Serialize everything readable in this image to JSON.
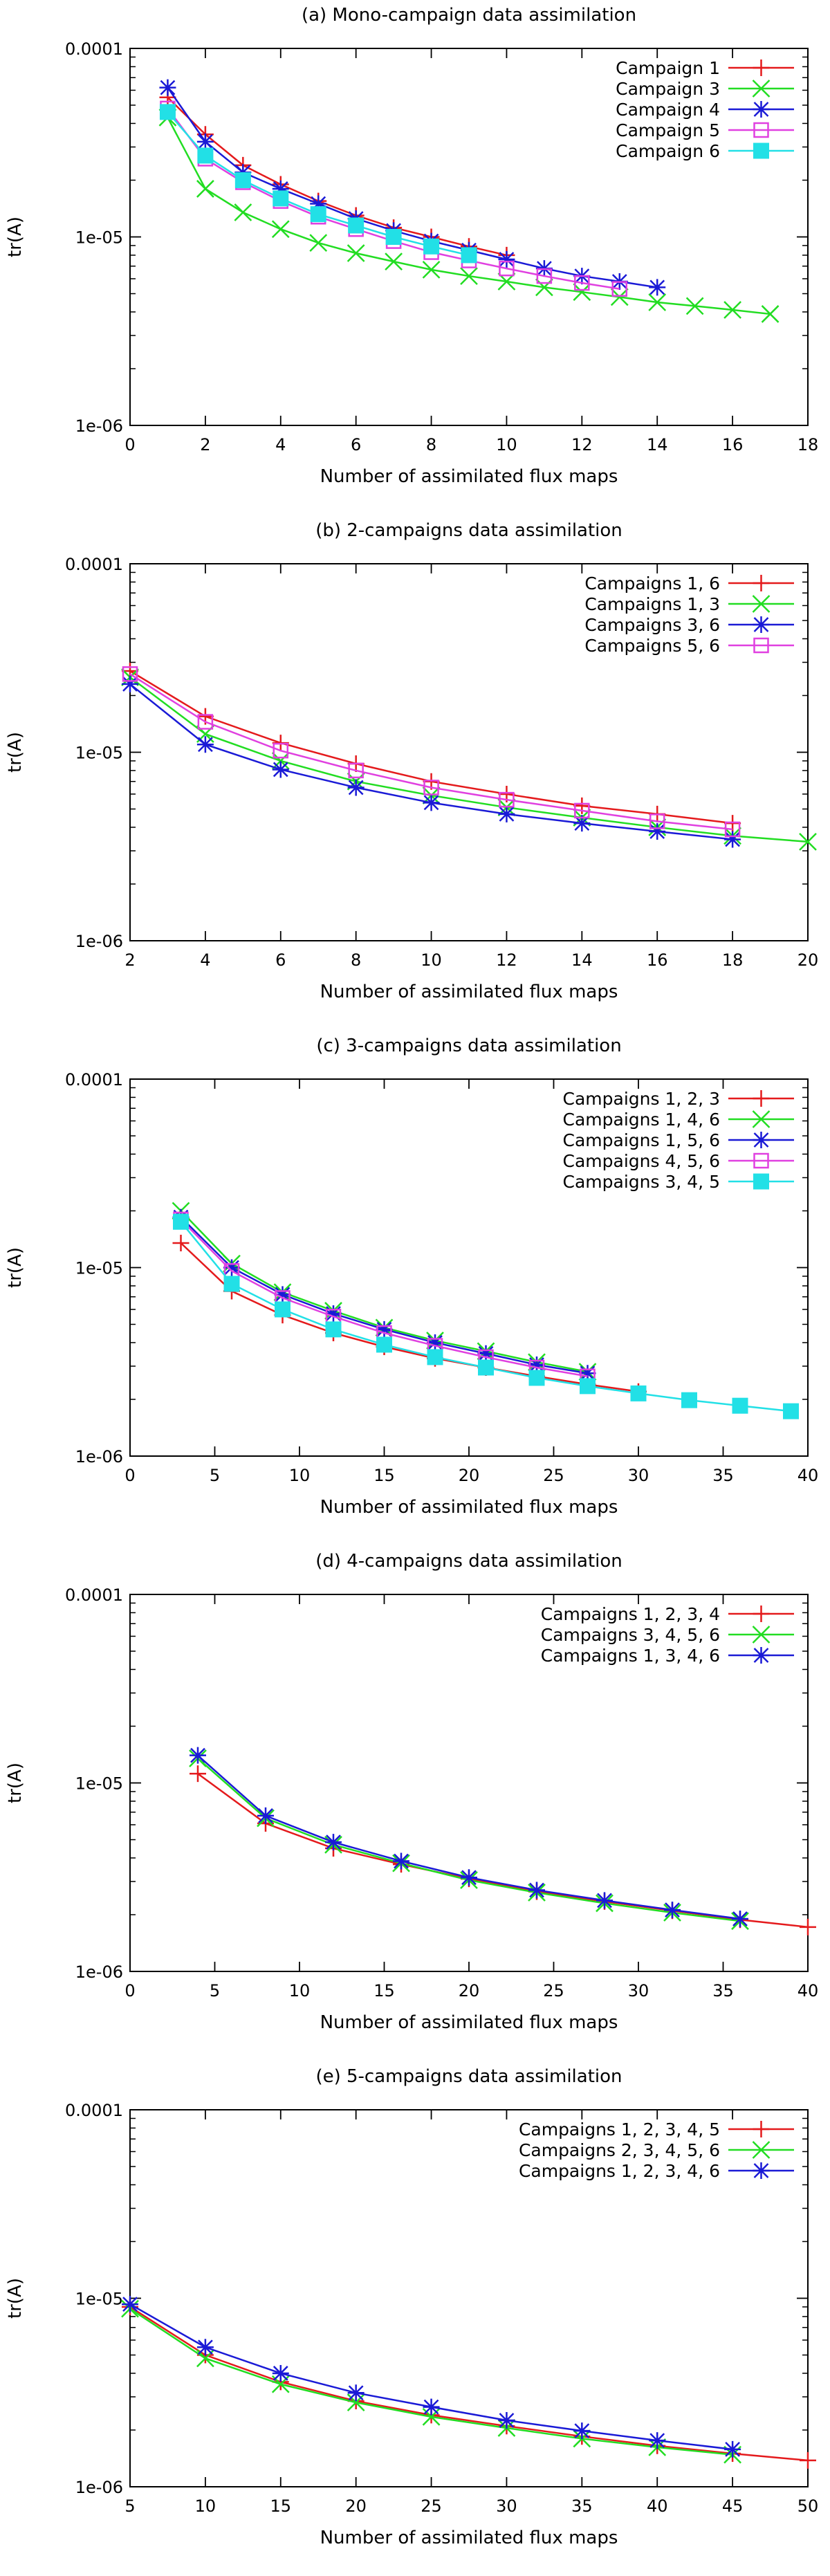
{
  "chart_data": [
    {
      "type": "line",
      "title": "(a)  Mono-campaign data assimilation",
      "xlabel": "Number of assimilated flux maps",
      "ylabel": "tr(A)",
      "xlim": [
        0,
        18
      ],
      "ylim": [
        1e-06,
        0.0001
      ],
      "yscale": "log",
      "xticks": [
        0,
        2,
        4,
        6,
        8,
        10,
        12,
        14,
        16,
        18
      ],
      "yticks": [
        1e-06,
        1e-05,
        0.0001
      ],
      "ytick_labels": [
        "1e-06",
        "1e-05",
        "0.0001"
      ],
      "legend": "top-right",
      "series": [
        {
          "name": "Campaign 1",
          "color": "#e41a1c",
          "marker": "plus",
          "x": [
            1,
            2,
            3,
            4,
            5,
            6,
            7,
            8,
            9,
            10
          ],
          "y": [
            5.5e-05,
            3.5e-05,
            2.4e-05,
            1.9e-05,
            1.55e-05,
            1.3e-05,
            1.12e-05,
            1e-05,
            8.9e-06,
            8e-06
          ]
        },
        {
          "name": "Campaign 3",
          "color": "#22dd22",
          "marker": "cross",
          "x": [
            1,
            2,
            3,
            4,
            5,
            6,
            7,
            8,
            9,
            10,
            11,
            12,
            13,
            14,
            15,
            16,
            17
          ],
          "y": [
            4.3e-05,
            1.8e-05,
            1.35e-05,
            1.1e-05,
            9.3e-06,
            8.2e-06,
            7.4e-06,
            6.7e-06,
            6.2e-06,
            5.8e-06,
            5.4e-06,
            5.1e-06,
            4.8e-06,
            4.5e-06,
            4.3e-06,
            4.1e-06,
            3.9e-06
          ]
        },
        {
          "name": "Campaign 4",
          "color": "#1a1ad6",
          "marker": "star",
          "x": [
            1,
            2,
            3,
            4,
            5,
            6,
            7,
            8,
            9,
            10,
            11,
            12,
            13,
            14
          ],
          "y": [
            6.2e-05,
            3.2e-05,
            2.2e-05,
            1.8e-05,
            1.5e-05,
            1.25e-05,
            1.08e-05,
            9.5e-06,
            8.5e-06,
            7.6e-06,
            6.8e-06,
            6.2e-06,
            5.8e-06,
            5.4e-06
          ]
        },
        {
          "name": "Campaign 5",
          "color": "#e040e0",
          "marker": "square",
          "x": [
            1,
            2,
            3,
            4,
            5,
            6,
            7,
            8,
            9,
            10,
            11,
            12,
            13
          ],
          "y": [
            4.8e-05,
            2.6e-05,
            1.95e-05,
            1.55e-05,
            1.28e-05,
            1.1e-05,
            9.5e-06,
            8.3e-06,
            7.5e-06,
            6.8e-06,
            6.2e-06,
            5.7e-06,
            5.3e-06
          ]
        },
        {
          "name": "Campaign 6",
          "color": "#22e0e6",
          "marker": "filled-square",
          "x": [
            1,
            2,
            3,
            4,
            5,
            6,
            7,
            8,
            9
          ],
          "y": [
            4.6e-05,
            2.7e-05,
            2e-05,
            1.6e-05,
            1.32e-05,
            1.15e-05,
            1e-05,
            8.9e-06,
            8e-06
          ]
        }
      ]
    },
    {
      "type": "line",
      "title": "(b)   2-campaigns data assimilation",
      "xlabel": "Number of assimilated flux maps",
      "ylabel": "tr(A)",
      "xlim": [
        2,
        20
      ],
      "ylim": [
        1e-06,
        0.0001
      ],
      "yscale": "log",
      "xticks": [
        2,
        4,
        6,
        8,
        10,
        12,
        14,
        16,
        18,
        20
      ],
      "yticks": [
        1e-06,
        1e-05,
        0.0001
      ],
      "ytick_labels": [
        "1e-06",
        "1e-05",
        "0.0001"
      ],
      "legend": "top-right",
      "series": [
        {
          "name": "Campaigns 1, 6",
          "color": "#e41a1c",
          "marker": "plus",
          "x": [
            2,
            4,
            6,
            8,
            10,
            12,
            14,
            16,
            18
          ],
          "y": [
            2.7e-05,
            1.55e-05,
            1.12e-05,
            8.7e-06,
            7e-06,
            6e-06,
            5.2e-06,
            4.7e-06,
            4.2e-06
          ]
        },
        {
          "name": "Campaigns 1, 3",
          "color": "#22dd22",
          "marker": "cross",
          "x": [
            2,
            4,
            6,
            8,
            10,
            12,
            14,
            16,
            18,
            20
          ],
          "y": [
            2.5e-05,
            1.25e-05,
            9e-06,
            7e-06,
            5.9e-06,
            5.1e-06,
            4.5e-06,
            4e-06,
            3.6e-06,
            3.35e-06
          ]
        },
        {
          "name": "Campaigns 3, 6",
          "color": "#1a1ad6",
          "marker": "star",
          "x": [
            2,
            4,
            6,
            8,
            10,
            12,
            14,
            16,
            18
          ],
          "y": [
            2.3e-05,
            1.1e-05,
            8.1e-06,
            6.5e-06,
            5.4e-06,
            4.7e-06,
            4.2e-06,
            3.8e-06,
            3.45e-06
          ]
        },
        {
          "name": "Campaigns 5, 6",
          "color": "#e040e0",
          "marker": "square",
          "x": [
            2,
            4,
            6,
            8,
            10,
            12,
            14,
            16,
            18
          ],
          "y": [
            2.6e-05,
            1.45e-05,
            1.02e-05,
            8e-06,
            6.5e-06,
            5.6e-06,
            4.9e-06,
            4.3e-06,
            3.9e-06
          ]
        }
      ]
    },
    {
      "type": "line",
      "title": "(c)   3-campaigns data assimilation",
      "xlabel": "Number of assimilated flux maps",
      "ylabel": "tr(A)",
      "xlim": [
        0,
        40
      ],
      "ylim": [
        1e-06,
        0.0001
      ],
      "yscale": "log",
      "xticks": [
        0,
        5,
        10,
        15,
        20,
        25,
        30,
        35,
        40
      ],
      "yticks": [
        1e-06,
        1e-05,
        0.0001
      ],
      "ytick_labels": [
        "1e-06",
        "1e-05",
        "0.0001"
      ],
      "legend": "top-right",
      "series": [
        {
          "name": "Campaigns 1, 2, 3",
          "color": "#e41a1c",
          "marker": "plus",
          "x": [
            3,
            6,
            9,
            12,
            15,
            18,
            21,
            24,
            27,
            30
          ],
          "y": [
            1.35e-05,
            7.5e-06,
            5.6e-06,
            4.5e-06,
            3.8e-06,
            3.3e-06,
            2.95e-06,
            2.65e-06,
            2.4e-06,
            2.2e-06
          ]
        },
        {
          "name": "Campaigns 1, 4, 6",
          "color": "#22dd22",
          "marker": "cross",
          "x": [
            3,
            6,
            9,
            12,
            15,
            18,
            21,
            24,
            27
          ],
          "y": [
            2e-05,
            1.05e-05,
            7.4e-06,
            5.9e-06,
            4.8e-06,
            4.1e-06,
            3.6e-06,
            3.15e-06,
            2.8e-06
          ]
        },
        {
          "name": "Campaigns 1, 5, 6",
          "color": "#1a1ad6",
          "marker": "star",
          "x": [
            3,
            6,
            9,
            12,
            15,
            18,
            21,
            24,
            27
          ],
          "y": [
            1.85e-05,
            1e-05,
            7.2e-06,
            5.7e-06,
            4.7e-06,
            4e-06,
            3.5e-06,
            3.05e-06,
            2.75e-06
          ]
        },
        {
          "name": "Campaigns 4, 5, 6",
          "color": "#e040e0",
          "marker": "square",
          "x": [
            3,
            6,
            9,
            12,
            15,
            18,
            21,
            24,
            27
          ],
          "y": [
            1.8e-05,
            9.6e-06,
            6.9e-06,
            5.5e-06,
            4.5e-06,
            3.85e-06,
            3.35e-06,
            2.95e-06,
            2.65e-06
          ]
        },
        {
          "name": "Campaigns 3, 4, 5",
          "color": "#22e0e6",
          "marker": "filled-square",
          "x": [
            3,
            6,
            9,
            12,
            15,
            18,
            21,
            24,
            27,
            30,
            33,
            36,
            39
          ],
          "y": [
            1.75e-05,
            8.2e-06,
            6e-06,
            4.7e-06,
            3.9e-06,
            3.35e-06,
            2.95e-06,
            2.6e-06,
            2.35e-06,
            2.15e-06,
            1.98e-06,
            1.85e-06,
            1.73e-06
          ]
        }
      ]
    },
    {
      "type": "line",
      "title": "(d)   4-campaigns data assimilation",
      "xlabel": "Number of assimilated flux maps",
      "ylabel": "tr(A)",
      "xlim": [
        0,
        40
      ],
      "ylim": [
        1e-06,
        0.0001
      ],
      "yscale": "log",
      "xticks": [
        0,
        5,
        10,
        15,
        20,
        25,
        30,
        35,
        40
      ],
      "yticks": [
        1e-06,
        1e-05,
        0.0001
      ],
      "ytick_labels": [
        "1e-06",
        "1e-05",
        "0.0001"
      ],
      "legend": "top-right",
      "series": [
        {
          "name": "Campaigns 1, 2, 3, 4",
          "color": "#e41a1c",
          "marker": "plus",
          "x": [
            4,
            8,
            12,
            16,
            20,
            24,
            28,
            32,
            36,
            40
          ],
          "y": [
            1.12e-05,
            6.1e-06,
            4.5e-06,
            3.7e-06,
            3.1e-06,
            2.65e-06,
            2.35e-06,
            2.1e-06,
            1.88e-06,
            1.72e-06
          ]
        },
        {
          "name": "Campaigns 3, 4, 5, 6",
          "color": "#22dd22",
          "marker": "cross",
          "x": [
            4,
            8,
            12,
            16,
            20,
            24,
            28,
            32,
            36
          ],
          "y": [
            1.35e-05,
            6.5e-06,
            4.7e-06,
            3.75e-06,
            3.05e-06,
            2.62e-06,
            2.3e-06,
            2.05e-06,
            1.85e-06
          ]
        },
        {
          "name": "Campaigns 1, 3, 4, 6",
          "color": "#1a1ad6",
          "marker": "star",
          "x": [
            4,
            8,
            12,
            16,
            20,
            24,
            28,
            32,
            36
          ],
          "y": [
            1.4e-05,
            6.7e-06,
            4.85e-06,
            3.85e-06,
            3.15e-06,
            2.7e-06,
            2.38e-06,
            2.12e-06,
            1.9e-06
          ]
        }
      ]
    },
    {
      "type": "line",
      "title": "(e)   5-campaigns data assimilation",
      "xlabel": "Number of assimilated flux maps",
      "ylabel": "tr(A)",
      "xlim": [
        5,
        50
      ],
      "ylim": [
        1e-06,
        0.0001
      ],
      "yscale": "log",
      "xticks": [
        5,
        10,
        15,
        20,
        25,
        30,
        35,
        40,
        45,
        50
      ],
      "yticks": [
        1e-06,
        1e-05,
        0.0001
      ],
      "ytick_labels": [
        "1e-06",
        "1e-05",
        "0.0001"
      ],
      "legend": "top-right",
      "series": [
        {
          "name": "Campaigns 1, 2, 3, 4, 5",
          "color": "#e41a1c",
          "marker": "plus",
          "x": [
            5,
            10,
            15,
            20,
            25,
            30,
            35,
            40,
            45,
            50
          ],
          "y": [
            9e-06,
            5e-06,
            3.6e-06,
            2.85e-06,
            2.4e-06,
            2.1e-06,
            1.85e-06,
            1.65e-06,
            1.5e-06,
            1.38e-06
          ]
        },
        {
          "name": "Campaigns 2, 3, 4, 5, 6",
          "color": "#22dd22",
          "marker": "cross",
          "x": [
            5,
            10,
            15,
            20,
            25,
            30,
            35,
            40,
            45
          ],
          "y": [
            8.8e-06,
            4.8e-06,
            3.5e-06,
            2.8e-06,
            2.35e-06,
            2.05e-06,
            1.8e-06,
            1.62e-06,
            1.48e-06
          ]
        },
        {
          "name": "Campaigns 1, 2, 3, 4, 6",
          "color": "#1a1ad6",
          "marker": "star",
          "x": [
            5,
            10,
            15,
            20,
            25,
            30,
            35,
            40,
            45
          ],
          "y": [
            9.3e-06,
            5.5e-06,
            4e-06,
            3.15e-06,
            2.65e-06,
            2.25e-06,
            1.98e-06,
            1.76e-06,
            1.58e-06
          ]
        }
      ]
    }
  ]
}
